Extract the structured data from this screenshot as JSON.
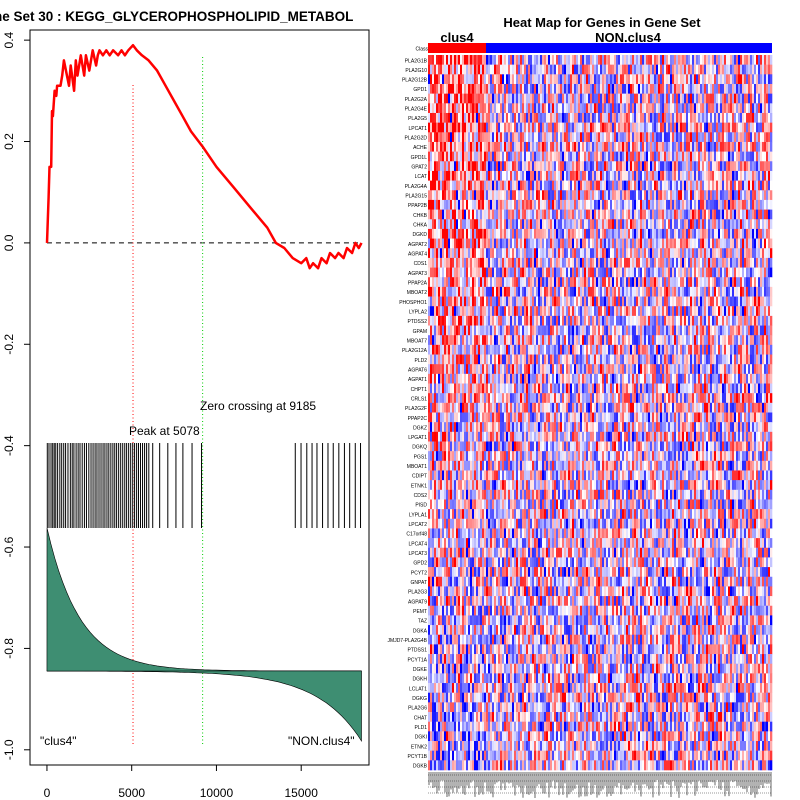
{
  "chart_data": [
    {
      "type": "line",
      "title": "ne Set  30 : KEGG_GLYCEROPHOSPHOLIPID_METABOL",
      "xlabel": "",
      "ylabel": "",
      "xlim": [
        -1000,
        19000
      ],
      "ylim": [
        -1.03,
        0.42
      ],
      "x_ticks": [
        0,
        5000,
        10000,
        15000
      ],
      "y_ticks": [
        0.4,
        0.2,
        0.0,
        -0.2,
        -0.4,
        -0.6,
        -0.8,
        -1.0
      ],
      "y_tick_labels": [
        "0.4",
        "0.2",
        "0.0",
        "-0.2",
        "-0.4",
        "-0.6",
        "-0.8",
        "-1.0"
      ],
      "series": [
        {
          "name": "Enrichment score",
          "color": "#ff0000",
          "x": [
            0,
            100,
            150,
            250,
            300,
            350,
            450,
            550,
            600,
            800,
            900,
            1000,
            1300,
            1400,
            1600,
            1700,
            1800,
            2000,
            2200,
            2300,
            2500,
            2700,
            2900,
            3000,
            3100,
            3300,
            3500,
            3700,
            3900,
            4200,
            4400,
            4600,
            4800,
            5078,
            5300,
            5600,
            6000,
            6500,
            7000,
            7500,
            8000,
            8500,
            9185,
            10000,
            11000,
            12000,
            12500,
            13000,
            13500,
            14000,
            14500,
            15000,
            15300,
            15500,
            15700,
            16000,
            16200,
            16500,
            16700,
            17000,
            17200,
            17500,
            17700,
            18000,
            18200,
            18400,
            18560
          ],
          "values": [
            0.0,
            0.09,
            0.15,
            0.15,
            0.26,
            0.25,
            0.3,
            0.29,
            0.31,
            0.31,
            0.33,
            0.36,
            0.31,
            0.35,
            0.3,
            0.36,
            0.33,
            0.37,
            0.33,
            0.37,
            0.34,
            0.38,
            0.35,
            0.37,
            0.38,
            0.37,
            0.38,
            0.37,
            0.38,
            0.37,
            0.38,
            0.37,
            0.38,
            0.39,
            0.38,
            0.37,
            0.36,
            0.34,
            0.31,
            0.28,
            0.25,
            0.22,
            0.19,
            0.15,
            0.11,
            0.07,
            0.05,
            0.03,
            0.0,
            -0.01,
            -0.03,
            -0.04,
            -0.03,
            -0.05,
            -0.04,
            -0.05,
            -0.03,
            -0.04,
            -0.02,
            -0.03,
            -0.02,
            -0.03,
            -0.01,
            -0.02,
            0.0,
            -0.01,
            0.0
          ]
        }
      ],
      "zero_line": {
        "y": 0.0,
        "color": "#000000",
        "style": "dashed"
      },
      "peak": {
        "x": 5078,
        "label": "Peak at 5078",
        "color": "#ff0000"
      },
      "zero_crossing": {
        "x": 9185,
        "label": "Zero crossing at 9185",
        "color": "#00cc00"
      },
      "hit_positions": [
        20,
        120,
        240,
        340,
        430,
        520,
        630,
        760,
        870,
        990,
        1100,
        1240,
        1380,
        1490,
        1590,
        1720,
        1840,
        1950,
        2080,
        2210,
        2330,
        2470,
        2600,
        2720,
        2840,
        2950,
        3070,
        3190,
        3310,
        3420,
        3540,
        3650,
        3770,
        3890,
        4000,
        4110,
        4230,
        4350,
        4470,
        4590,
        4700,
        4820,
        4940,
        5060,
        5170,
        5290,
        5400,
        5520,
        5640,
        5760,
        5880,
        6010,
        6240,
        6650,
        7130,
        7610,
        8020,
        8560,
        9120,
        14650,
        14990,
        15330,
        15640,
        15930,
        16260,
        16580,
        16890,
        17220,
        17550,
        17860,
        18190,
        18500
      ],
      "ranked_metric_fill": "#3e8e72",
      "annotations": [
        "\"clus4\"",
        "\"NON.clus4\""
      ]
    },
    {
      "type": "heatmap",
      "title": "Heat Map for Genes in Gene Set",
      "group_labels": [
        "clus4",
        "NON.clus4"
      ],
      "group_colors": [
        "#ff0000",
        "#0000ff"
      ],
      "class_row_label": "Class",
      "genes": [
        "PLA2G1B",
        "PLA2G10",
        "PLA2G12B",
        "GPD1",
        "PLA2G2A",
        "PLA2G4E",
        "PLA2G5",
        "LPCAT1",
        "PLA2G2D",
        "ACHE",
        "GPD1L",
        "GPAT2",
        "LCAT",
        "PLA2G4A",
        "PLA2G15",
        "PPAP2B",
        "CHKB",
        "CHKA",
        "DGKD",
        "AGPAT2",
        "AGPAT4",
        "CDS1",
        "AGPAT3",
        "PPAP2A",
        "MBOAT2",
        "PHOSPHO1",
        "LYPLA2",
        "PTDSS2",
        "GPAM",
        "MBOAT7",
        "PLA2G12A",
        "PLD2",
        "AGPAT6",
        "AGPAT1",
        "CHPT1",
        "CRLS1",
        "PLA2G2F",
        "PPAP2C",
        "DGKZ",
        "LPGAT1",
        "DGKQ",
        "PGS1",
        "MBOAT1",
        "CDIPT",
        "ETNK1",
        "CDS2",
        "PISD",
        "LYPLA1",
        "LPCAT2",
        "C17orf48",
        "LPCAT4",
        "LPCAT3",
        "GPD2",
        "PCYT2",
        "GNPAT",
        "PLA2G3",
        "AGPAT9",
        "PEMT",
        "TAZ",
        "DGKA",
        "JMJD7-PLA2G4B",
        "PTDSS1",
        "PCYT1A",
        "DGKE",
        "DGKH",
        "LCLAT1",
        "DGKG",
        "PLA2G6",
        "CHAT",
        "PLD1",
        "DGKI",
        "ETNK2",
        "PCYT1B",
        "DGKB"
      ],
      "colormap": [
        "#0000ff",
        "#ffffff",
        "#ff0000"
      ]
    }
  ]
}
